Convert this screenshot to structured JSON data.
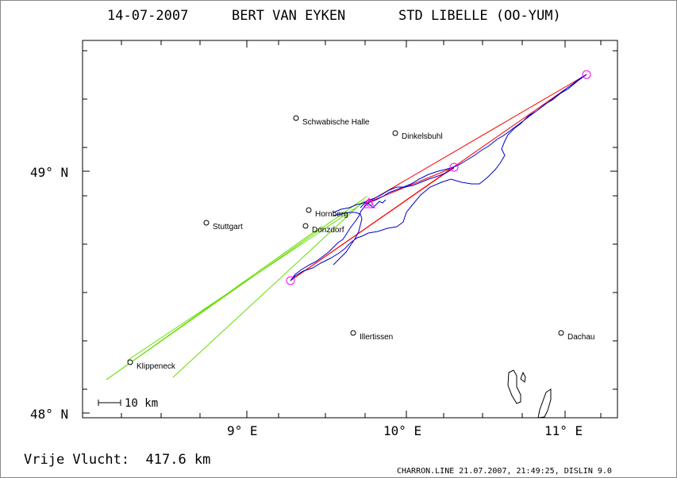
{
  "title": {
    "date": "14-07-2007",
    "pilot": "BERT VAN EYKEN",
    "glider": "STD LIBELLE (OO-YUM)"
  },
  "axes": {
    "lat_labels": [
      "49° N",
      "48° N"
    ],
    "lon_labels": [
      "9° E",
      "10° E",
      "11° E"
    ]
  },
  "scale_label": "10 km",
  "footer": {
    "distance": "Vrije Vlucht:  417.6 km",
    "credit": "CHARRON.LINE 21.07.2007, 21:49:25, DISLIN 9.0"
  },
  "cities": [
    {
      "name": "Schwabische Halle"
    },
    {
      "name": "Dinkelsbuhl"
    },
    {
      "name": "Hornberg"
    },
    {
      "name": "Stuttgart"
    },
    {
      "name": "Donzdorf"
    },
    {
      "name": "Illertissen"
    },
    {
      "name": "Dachau"
    },
    {
      "name": "Klippeneck"
    }
  ],
  "colors": {
    "track": "#0000cc",
    "task": "#ff0000",
    "approach": "#66dd00",
    "turnpoint": "#ff00ff"
  }
}
